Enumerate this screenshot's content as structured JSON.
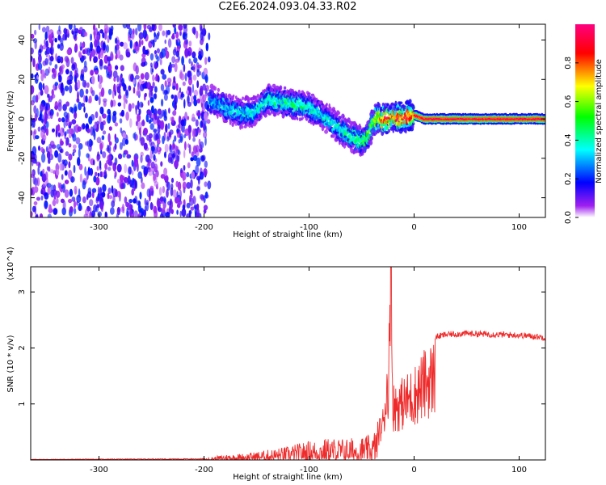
{
  "figure": {
    "title": "C2E6.2024.093.04.33.R02"
  },
  "chart_data": [
    {
      "type": "heatmap",
      "xlabel": "Height of straight line (km)",
      "ylabel": "Frequency (Hz)",
      "xlim": [
        -365,
        125
      ],
      "ylim": [
        -50,
        48
      ],
      "x_ticks": [
        -300,
        -200,
        -100,
        0,
        100
      ],
      "y_ticks": [
        -40,
        -20,
        0,
        20,
        40
      ],
      "colorbar": {
        "label": "Normalized spectral amplitude",
        "range": [
          0.0,
          1.0
        ],
        "ticks": [
          0.0,
          0.2,
          0.4,
          0.6,
          0.8
        ],
        "colormap": [
          "#ffffff",
          "#a020f0",
          "#0000ff",
          "#00ffff",
          "#00ff00",
          "#ffff00",
          "#ff0000",
          "#ff00ff"
        ]
      },
      "noise_region": {
        "x": [
          -365,
          -195
        ],
        "y": [
          -50,
          48
        ],
        "amplitude": 0.18
      },
      "ridge": {
        "x": [
          -195,
          -180,
          -165,
          -150,
          -140,
          -130,
          -120,
          -110,
          -100,
          -90,
          -80,
          -70,
          -60,
          -50,
          -45,
          -40,
          -35,
          -30,
          -20,
          -10,
          0,
          10,
          50,
          100,
          125
        ],
        "y": [
          10,
          6,
          3,
          4,
          10,
          9,
          8,
          7,
          6,
          3,
          -1,
          -5,
          -9,
          -11,
          -10,
          -3,
          1,
          0,
          1,
          1,
          2,
          0,
          0,
          0,
          0
        ],
        "amplitude": [
          0.3,
          0.35,
          0.38,
          0.4,
          0.42,
          0.45,
          0.44,
          0.45,
          0.42,
          0.4,
          0.4,
          0.42,
          0.45,
          0.5,
          0.55,
          0.6,
          0.75,
          0.85,
          0.9,
          0.92,
          0.95,
          0.95,
          0.95,
          0.95,
          0.95
        ]
      }
    },
    {
      "type": "line",
      "xlabel": "Height of straight line (km)",
      "ylabel": "SNR (10 * v/v)",
      "y_multiplier": "(x10^4)",
      "xlim": [
        -365,
        125
      ],
      "ylim": [
        0,
        3.45
      ],
      "x_ticks": [
        -300,
        -200,
        -100,
        0,
        100
      ],
      "y_ticks": [
        1,
        2,
        3
      ],
      "series": [
        {
          "color": "#ee2a2a",
          "envelope": {
            "x": [
              -365,
              -200,
              -180,
              -160,
              -140,
              -120,
              -100,
              -80,
              -60,
              -40,
              -30,
              -25,
              -22,
              -20,
              -10,
              0,
              10,
              20,
              30,
              50,
              80,
              100,
              125
            ],
            "y": [
              0.01,
              0.02,
              0.1,
              0.12,
              0.18,
              0.25,
              0.35,
              0.4,
              0.4,
              0.45,
              0.9,
              2.0,
              3.45,
              1.4,
              1.5,
              1.7,
              2.0,
              2.2,
              2.25,
              2.27,
              2.25,
              2.24,
              2.2
            ]
          }
        }
      ]
    }
  ]
}
